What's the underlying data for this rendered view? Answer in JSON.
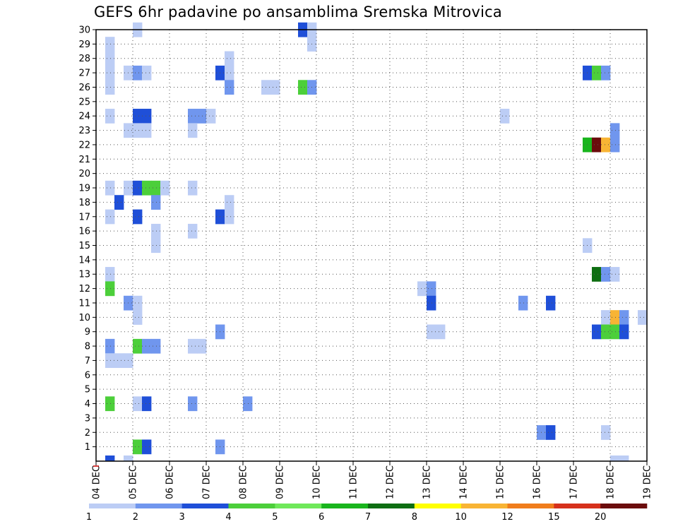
{
  "title": "GEFS 6hr padavine po ansamblima Sremska Mitrovica",
  "chart_data": {
    "type": "heatmap",
    "title": "GEFS 6hr padavine po ansamblima Sremska Mitrovica",
    "x_tick_labels": [
      "04 DEC",
      "05 DEC",
      "06 DEC",
      "07 DEC",
      "08 DEC",
      "09 DEC",
      "10 DEC",
      "11 DEC",
      "12 DEC",
      "13 DEC",
      "14 DEC",
      "15 DEC",
      "16 DEC",
      "17 DEC",
      "18 DEC",
      "19 DEC"
    ],
    "y_tick_labels": [
      "1",
      "2",
      "3",
      "4",
      "5",
      "6",
      "7",
      "8",
      "9",
      "10",
      "11",
      "12",
      "13",
      "14",
      "15",
      "16",
      "17",
      "18",
      "19",
      "20",
      "21",
      "22",
      "23",
      "24",
      "25",
      "26",
      "27",
      "28",
      "29",
      "30"
    ],
    "xlim_days": [
      0,
      15
    ],
    "ylim": [
      0,
      30
    ],
    "time_step_hours": 6,
    "grid": "dotted",
    "colorbar": {
      "labels": [
        "1",
        "2",
        "3",
        "4",
        "5",
        "6",
        "7",
        "8",
        "10",
        "12",
        "15",
        "20"
      ],
      "colors": [
        "#bccdf5",
        "#7096ee",
        "#1f4fd8",
        "#4ccf3a",
        "#6fe85a",
        "#19b51d",
        "#0e6e12",
        "#ffff00",
        "#f8b434",
        "#f07d1c",
        "#d6311c",
        "#6b0c0c"
      ]
    },
    "cells": [
      {
        "member": 30,
        "step": 4,
        "v": 1.5
      },
      {
        "member": 30,
        "step": 22,
        "v": 3.5
      },
      {
        "member": 30,
        "step": 23,
        "v": 1.5
      },
      {
        "member": 29,
        "step": 1,
        "v": 1.5
      },
      {
        "member": 29,
        "step": 23,
        "v": 1.5
      },
      {
        "member": 28,
        "step": 1,
        "v": 1.5
      },
      {
        "member": 28,
        "step": 14,
        "v": 1.5
      },
      {
        "member": 27,
        "step": 1,
        "v": 1.5
      },
      {
        "member": 27,
        "step": 3,
        "v": 1.5
      },
      {
        "member": 27,
        "step": 4,
        "v": 2.5
      },
      {
        "member": 27,
        "step": 5,
        "v": 1.5
      },
      {
        "member": 27,
        "step": 13,
        "v": 3.5
      },
      {
        "member": 27,
        "step": 14,
        "v": 1.5
      },
      {
        "member": 27,
        "step": 53,
        "v": 3.5
      },
      {
        "member": 27,
        "step": 54,
        "v": 4.5
      },
      {
        "member": 27,
        "step": 55,
        "v": 2.5
      },
      {
        "member": 26,
        "step": 1,
        "v": 1.5
      },
      {
        "member": 26,
        "step": 14,
        "v": 2.5
      },
      {
        "member": 26,
        "step": 18,
        "v": 1.5
      },
      {
        "member": 26,
        "step": 19,
        "v": 1.5
      },
      {
        "member": 26,
        "step": 22,
        "v": 4.5
      },
      {
        "member": 26,
        "step": 23,
        "v": 2.5
      },
      {
        "member": 24,
        "step": 1,
        "v": 1.5
      },
      {
        "member": 24,
        "step": 4,
        "v": 3.5
      },
      {
        "member": 24,
        "step": 5,
        "v": 3.5
      },
      {
        "member": 24,
        "step": 10,
        "v": 2.5
      },
      {
        "member": 24,
        "step": 11,
        "v": 2.5
      },
      {
        "member": 24,
        "step": 12,
        "v": 1.5
      },
      {
        "member": 24,
        "step": 44,
        "v": 1.5
      },
      {
        "member": 23,
        "step": 3,
        "v": 1.5
      },
      {
        "member": 23,
        "step": 4,
        "v": 1.5
      },
      {
        "member": 23,
        "step": 5,
        "v": 1.5
      },
      {
        "member": 23,
        "step": 10,
        "v": 1.5
      },
      {
        "member": 23,
        "step": 56,
        "v": 2.5
      },
      {
        "member": 22,
        "step": 53,
        "v": 6.5
      },
      {
        "member": 22,
        "step": 54,
        "v": 25
      },
      {
        "member": 22,
        "step": 55,
        "v": 11
      },
      {
        "member": 22,
        "step": 56,
        "v": 2.5
      },
      {
        "member": 19,
        "step": 1,
        "v": 1.5
      },
      {
        "member": 19,
        "step": 3,
        "v": 1.5
      },
      {
        "member": 19,
        "step": 4,
        "v": 3.5
      },
      {
        "member": 19,
        "step": 5,
        "v": 4.5
      },
      {
        "member": 19,
        "step": 6,
        "v": 4.5
      },
      {
        "member": 19,
        "step": 7,
        "v": 1.5
      },
      {
        "member": 19,
        "step": 10,
        "v": 1.5
      },
      {
        "member": 18,
        "step": 2,
        "v": 3.5
      },
      {
        "member": 18,
        "step": 6,
        "v": 2.5
      },
      {
        "member": 18,
        "step": 14,
        "v": 1.5
      },
      {
        "member": 17,
        "step": 1,
        "v": 1.5
      },
      {
        "member": 17,
        "step": 4,
        "v": 3.5
      },
      {
        "member": 17,
        "step": 13,
        "v": 3.5
      },
      {
        "member": 17,
        "step": 14,
        "v": 1.5
      },
      {
        "member": 16,
        "step": 6,
        "v": 1.5
      },
      {
        "member": 16,
        "step": 10,
        "v": 1.5
      },
      {
        "member": 15,
        "step": 6,
        "v": 1.5
      },
      {
        "member": 15,
        "step": 53,
        "v": 1.5
      },
      {
        "member": 13,
        "step": 1,
        "v": 1.5
      },
      {
        "member": 13,
        "step": 54,
        "v": 7.5
      },
      {
        "member": 13,
        "step": 55,
        "v": 2.5
      },
      {
        "member": 13,
        "step": 56,
        "v": 1.5
      },
      {
        "member": 12,
        "step": 1,
        "v": 4.5
      },
      {
        "member": 12,
        "step": 35,
        "v": 1.5
      },
      {
        "member": 12,
        "step": 36,
        "v": 2.5
      },
      {
        "member": 11,
        "step": 3,
        "v": 2.5
      },
      {
        "member": 11,
        "step": 4,
        "v": 1.5
      },
      {
        "member": 11,
        "step": 36,
        "v": 3.5
      },
      {
        "member": 11,
        "step": 46,
        "v": 2.5
      },
      {
        "member": 11,
        "step": 49,
        "v": 3.5
      },
      {
        "member": 10,
        "step": 4,
        "v": 1.5
      },
      {
        "member": 10,
        "step": 55,
        "v": 1.5
      },
      {
        "member": 10,
        "step": 56,
        "v": 11
      },
      {
        "member": 10,
        "step": 57,
        "v": 2.5
      },
      {
        "member": 10,
        "step": 59,
        "v": 1.5
      },
      {
        "member": 9,
        "step": 13,
        "v": 2.5
      },
      {
        "member": 9,
        "step": 36,
        "v": 1.5
      },
      {
        "member": 9,
        "step": 37,
        "v": 1.5
      },
      {
        "member": 9,
        "step": 54,
        "v": 3.5
      },
      {
        "member": 9,
        "step": 55,
        "v": 4.5
      },
      {
        "member": 9,
        "step": 56,
        "v": 4.5
      },
      {
        "member": 9,
        "step": 57,
        "v": 3.5
      },
      {
        "member": 8,
        "step": 1,
        "v": 2.5
      },
      {
        "member": 8,
        "step": 4,
        "v": 4.5
      },
      {
        "member": 8,
        "step": 5,
        "v": 2.5
      },
      {
        "member": 8,
        "step": 6,
        "v": 2.5
      },
      {
        "member": 8,
        "step": 10,
        "v": 1.5
      },
      {
        "member": 8,
        "step": 11,
        "v": 1.5
      },
      {
        "member": 7,
        "step": 1,
        "v": 1.5
      },
      {
        "member": 7,
        "step": 2,
        "v": 1.5
      },
      {
        "member": 7,
        "step": 3,
        "v": 1.5
      },
      {
        "member": 4,
        "step": 1,
        "v": 4.5
      },
      {
        "member": 4,
        "step": 4,
        "v": 1.5
      },
      {
        "member": 4,
        "step": 5,
        "v": 3.5
      },
      {
        "member": 4,
        "step": 10,
        "v": 2.5
      },
      {
        "member": 4,
        "step": 16,
        "v": 2.5
      },
      {
        "member": 2,
        "step": 48,
        "v": 2.5
      },
      {
        "member": 2,
        "step": 49,
        "v": 3.5
      },
      {
        "member": 2,
        "step": 55,
        "v": 1.5
      },
      {
        "member": 1,
        "step": 4,
        "v": 4.5
      },
      {
        "member": 1,
        "step": 5,
        "v": 3.5
      },
      {
        "member": 1,
        "step": 13,
        "v": 2.5
      },
      {
        "member": 0,
        "step": 1,
        "v": 3.5
      },
      {
        "member": 0,
        "step": 3,
        "v": 1.5
      },
      {
        "member": 0,
        "step": 56,
        "v": 1.5
      },
      {
        "member": 0,
        "step": 57,
        "v": 1.5
      }
    ]
  }
}
